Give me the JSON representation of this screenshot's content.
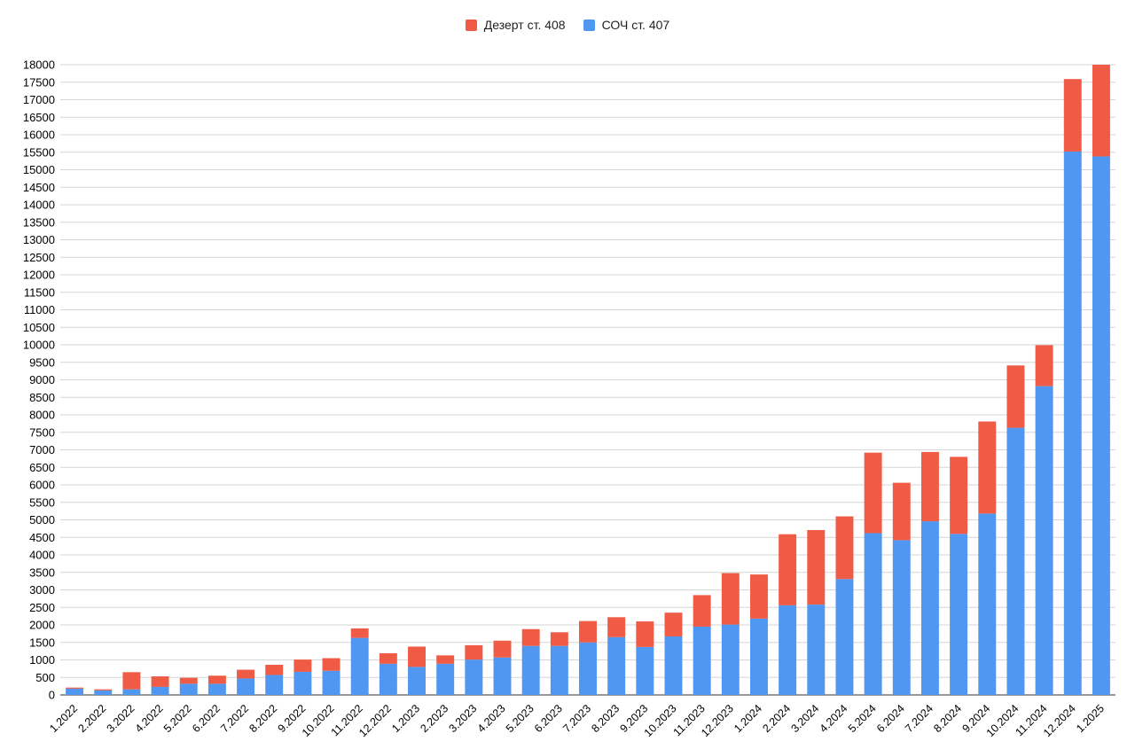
{
  "chart_data": {
    "type": "bar",
    "stacked": true,
    "title": "",
    "xlabel": "",
    "ylabel": "",
    "ylim": [
      0,
      18000
    ],
    "ytick_step": 500,
    "grid": true,
    "legend_position": "top-center",
    "categories": [
      "1.2022",
      "2.2022",
      "3.2022",
      "4.2022",
      "5.2022",
      "6.2022",
      "7.2022",
      "8.2022",
      "9.2022",
      "10.2022",
      "11.2022",
      "12.2022",
      "1.2023",
      "2.2023",
      "3.2023",
      "4.2023",
      "5.2023",
      "6.2023",
      "7.2023",
      "8.2023",
      "9.2023",
      "10.2023",
      "11.2023",
      "12.2023",
      "1.2024",
      "2.2024",
      "3.2024",
      "4.2024",
      "5.2024",
      "6.2024",
      "7.2024",
      "8.2024",
      "9.2024",
      "10.2024",
      "11.2024",
      "12.2024",
      "1.2025"
    ],
    "series": [
      {
        "name": "СОЧ ст. 407",
        "color": "#4f97f0",
        "values": [
          180,
          130,
          160,
          230,
          320,
          320,
          470,
          570,
          660,
          690,
          1630,
          890,
          800,
          890,
          1010,
          1070,
          1400,
          1400,
          1500,
          1650,
          1370,
          1670,
          1950,
          2010,
          2180,
          2560,
          2580,
          3310,
          4620,
          4420,
          4960,
          4600,
          5180,
          7630,
          8820,
          15520,
          15380
        ]
      },
      {
        "name": "Дезерт ст. 408",
        "color": "#ef5b45",
        "values": [
          30,
          30,
          490,
          300,
          170,
          230,
          250,
          290,
          350,
          360,
          270,
          300,
          580,
          240,
          410,
          480,
          480,
          390,
          610,
          570,
          730,
          680,
          900,
          1470,
          1260,
          2030,
          2130,
          1790,
          2300,
          1640,
          1980,
          2200,
          2630,
          1780,
          1170,
          2070,
          2620
        ]
      }
    ]
  }
}
